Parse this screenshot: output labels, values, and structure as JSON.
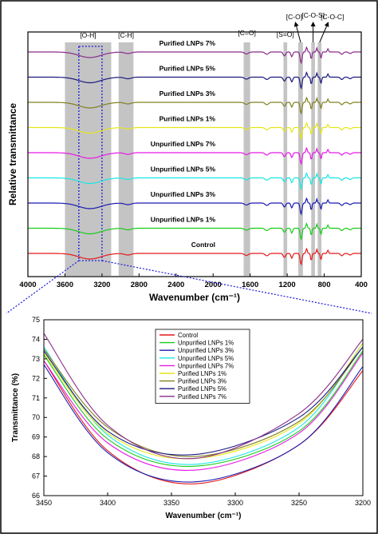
{
  "chart_data": [
    {
      "type": "line",
      "title": "",
      "xlabel": "Wavenumber (cm⁻¹)",
      "ylabel": "Relative transmittance",
      "xlim": [
        4000,
        400
      ],
      "x_reversed": true,
      "x_ticks": [
        4000,
        3600,
        3200,
        2800,
        2400,
        2000,
        1600,
        1200,
        800,
        400
      ],
      "y_ticks": "none",
      "grid": false,
      "legend": "inline labels",
      "highlight_bands": [
        {
          "label": "[O-H]",
          "from": 3600,
          "to": 3100
        },
        {
          "label": "[C-H]",
          "from": 3020,
          "to": 2860
        },
        {
          "label": "[C=O]",
          "from": 1670,
          "to": 1600
        },
        {
          "label": "[S=O]",
          "from": 1240,
          "to": 1200
        },
        {
          "label": "[C-O]",
          "from": 1080,
          "to": 1030
        },
        {
          "label": "[C-O-S]",
          "from": 940,
          "to": 900
        },
        {
          "label": "[C-O-C]",
          "from": 870,
          "to": 830
        }
      ],
      "zoom_box": {
        "from": 3450,
        "to": 3200
      },
      "series": [
        {
          "name": "Purified LNPs 7%",
          "color": "#8B2A8B"
        },
        {
          "name": "Purified LNPs 5%",
          "color": "#1A1A80"
        },
        {
          "name": "Purified LNPs 3%",
          "color": "#808020"
        },
        {
          "name": "Purified LNPs 1%",
          "color": "#E6E619"
        },
        {
          "name": "Unpurified LNPs 7%",
          "color": "#E619E6"
        },
        {
          "name": "Unpurified LNPs 5%",
          "color": "#19E6E6"
        },
        {
          "name": "Unpurified LNPs 3%",
          "color": "#1A1AB3"
        },
        {
          "name": "Unpurified LNPs 1%",
          "color": "#19CC19"
        },
        {
          "name": "Control",
          "color": "#E61919"
        }
      ]
    },
    {
      "type": "line",
      "title": "",
      "xlabel": "Wavenumber (cm⁻¹)",
      "ylabel": "Transmittance (%)",
      "xlim": [
        3450,
        3200
      ],
      "ylim": [
        66,
        75
      ],
      "x_reversed": true,
      "x_ticks": [
        3450,
        3400,
        3350,
        3300,
        3250,
        3200
      ],
      "y_ticks": [
        66,
        67,
        68,
        69,
        70,
        71,
        72,
        73,
        74,
        75
      ],
      "grid": false,
      "legend": "top-center",
      "series": [
        {
          "name": "Control",
          "color": "#E61919",
          "x": [
            3450,
            3400,
            3333,
            3250,
            3200
          ],
          "y": [
            72.9,
            68.3,
            66.6,
            68.6,
            72.4
          ]
        },
        {
          "name": "Unpurified LNPs 1%",
          "color": "#19CC19",
          "x": [
            3450,
            3400,
            3333,
            3250,
            3200
          ],
          "y": [
            73.2,
            68.9,
            67.5,
            69.3,
            73.4
          ]
        },
        {
          "name": "Unpurified LNPs 3%",
          "color": "#1A1AB3",
          "x": [
            3450,
            3400,
            3333,
            3250,
            3200
          ],
          "y": [
            72.7,
            68.2,
            66.7,
            68.6,
            72.6
          ]
        },
        {
          "name": "Unpurified LNPs 5%",
          "color": "#19E6E6",
          "x": [
            3450,
            3400,
            3333,
            3250,
            3200
          ],
          "y": [
            73.6,
            69.1,
            67.6,
            69.5,
            73.8
          ]
        },
        {
          "name": "Unpurified LNPs 7%",
          "color": "#E619E6",
          "x": [
            3450,
            3400,
            3333,
            3250,
            3200
          ],
          "y": [
            72.9,
            68.7,
            67.3,
            69.2,
            73.3
          ]
        },
        {
          "name": "Purified LNPs 1%",
          "color": "#E6E619",
          "x": [
            3450,
            3400,
            3333,
            3250,
            3200
          ],
          "y": [
            73.3,
            69.2,
            67.9,
            69.7,
            73.8
          ]
        },
        {
          "name": "Purified LNPs 3%",
          "color": "#808020",
          "x": [
            3450,
            3400,
            3333,
            3250,
            3200
          ],
          "y": [
            73.5,
            69.5,
            68.0,
            69.8,
            73.6
          ]
        },
        {
          "name": "Purified LNPs 5%",
          "color": "#1A1A80",
          "x": [
            3450,
            3400,
            3333,
            3250,
            3200
          ],
          "y": [
            73.4,
            69.3,
            68.1,
            70.0,
            73.6
          ]
        },
        {
          "name": "Purified LNPs 7%",
          "color": "#8B2A8B",
          "x": [
            3450,
            3400,
            3333,
            3250,
            3200
          ],
          "y": [
            74.3,
            69.6,
            67.9,
            70.2,
            74.0
          ]
        }
      ]
    }
  ]
}
